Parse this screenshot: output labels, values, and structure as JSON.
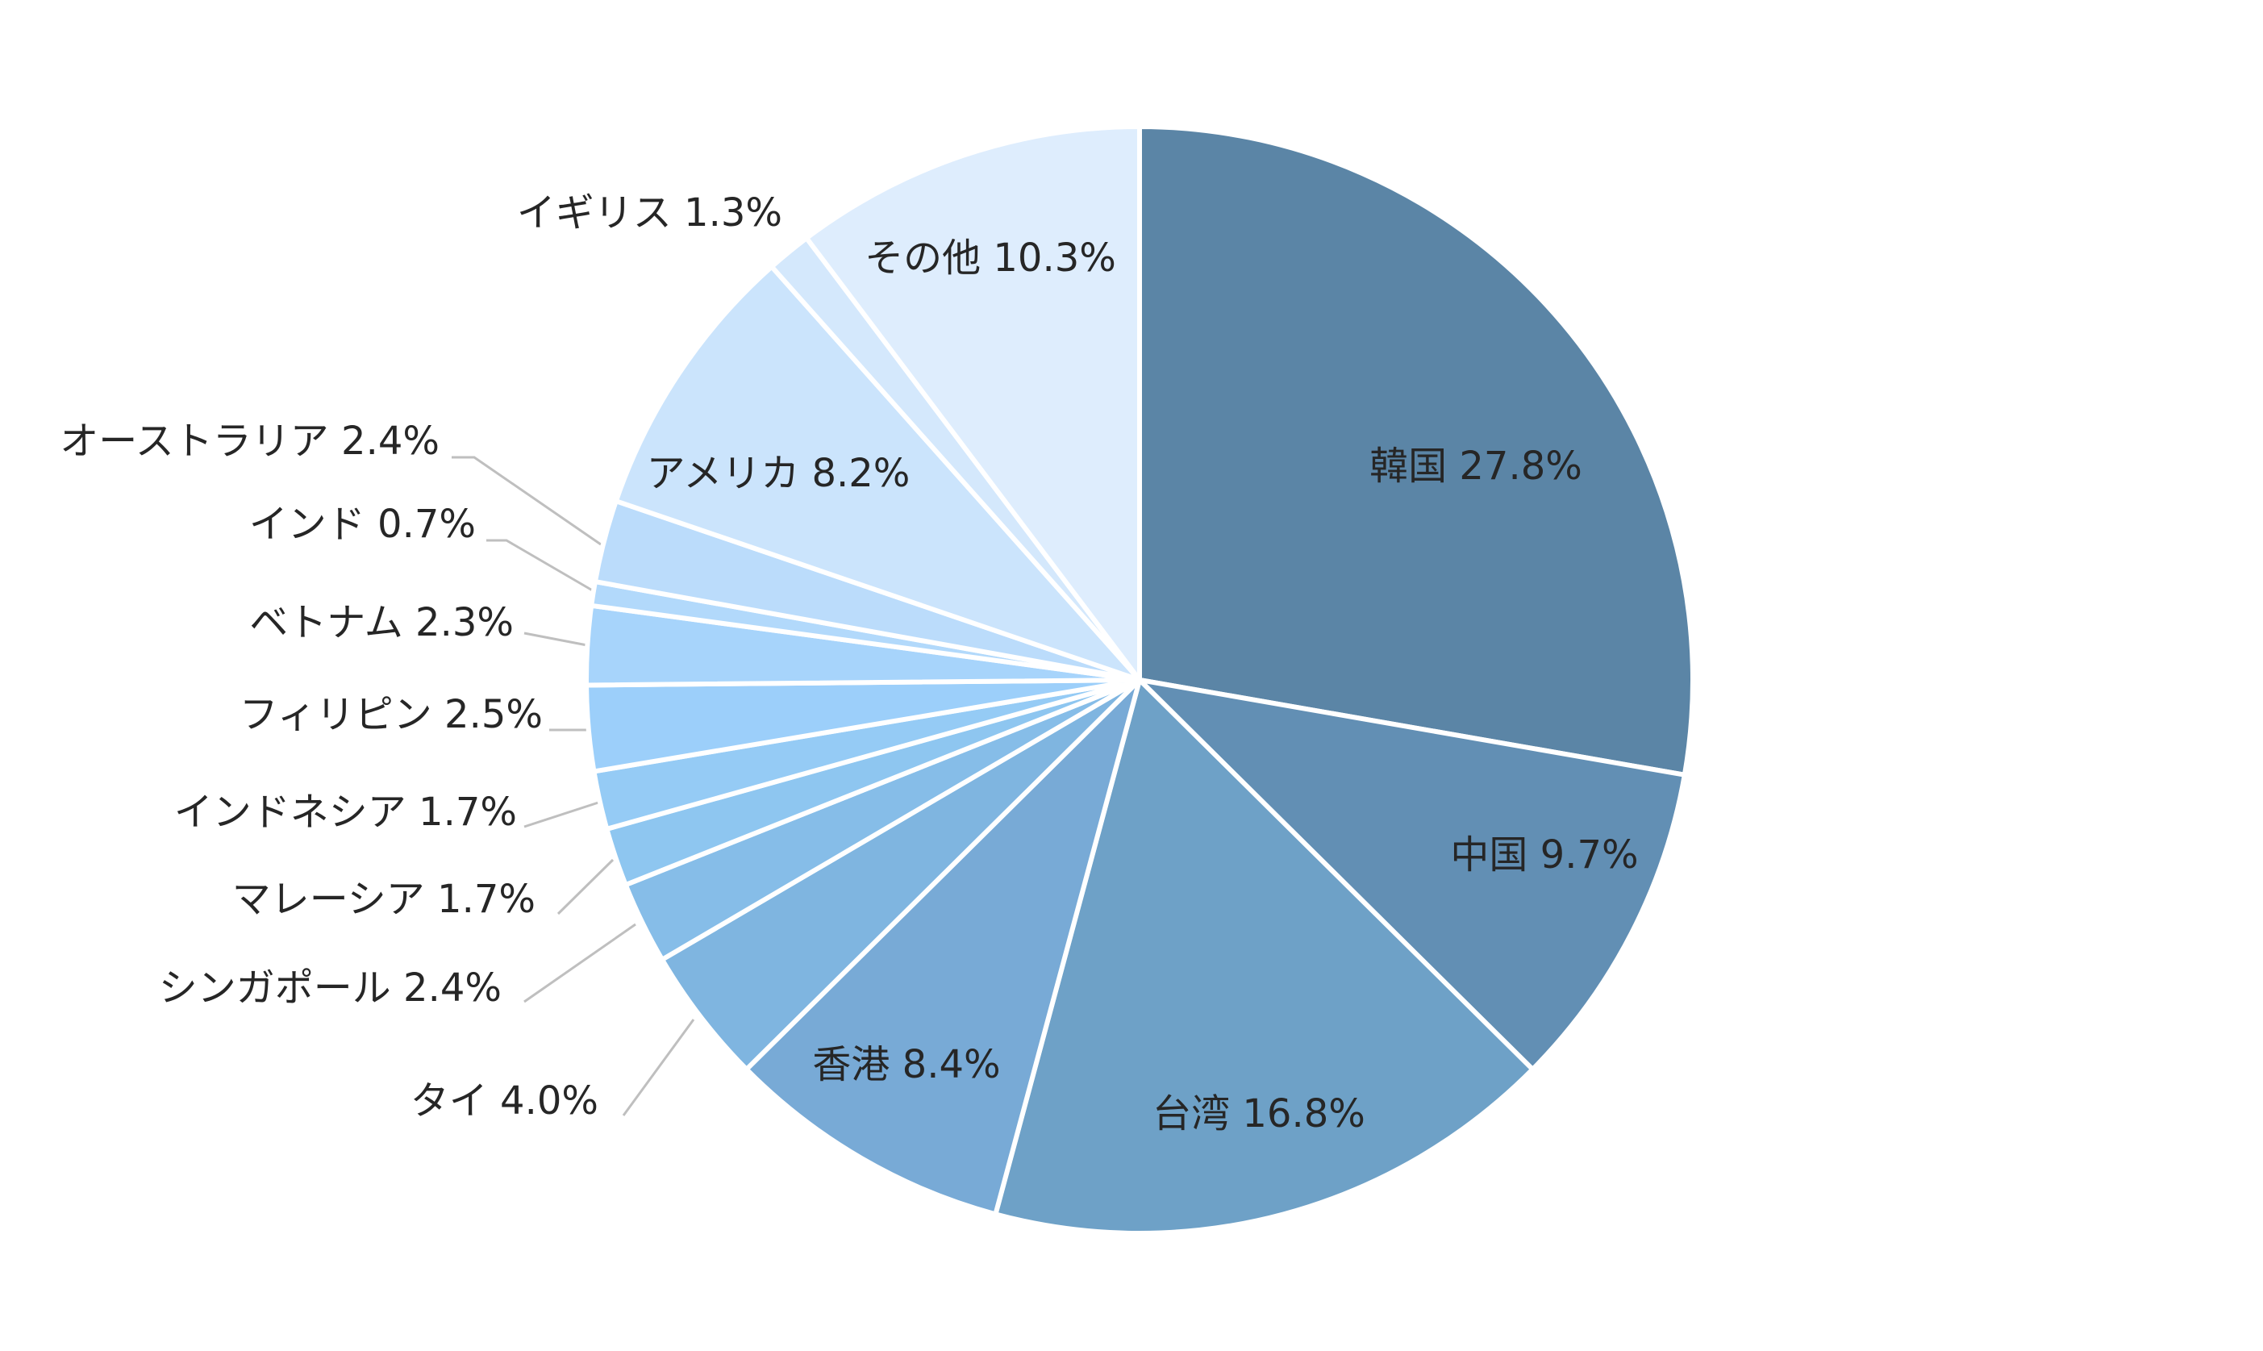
{
  "chart_data": {
    "type": "pie",
    "title": "",
    "start": "12 o'clock, clockwise",
    "slices": [
      {
        "name": "韓国",
        "value": 27.8,
        "label": "韓国 27.8%",
        "color": "#5b85a6"
      },
      {
        "name": "中国",
        "value": 9.7,
        "label": "中国 9.7%",
        "color": "#628fb4"
      },
      {
        "name": "台湾",
        "value": 16.8,
        "label": "台湾 16.8%",
        "color": "#6ea1c7"
      },
      {
        "name": "香港",
        "value": 8.4,
        "label": "香港 8.4%",
        "color": "#78aad6"
      },
      {
        "name": "タイ",
        "value": 4.0,
        "label": "タイ 4.0%",
        "color": "#7fb5e0"
      },
      {
        "name": "シンガポール",
        "value": 2.4,
        "label": "シンガポール 2.4%",
        "color": "#86bde8"
      },
      {
        "name": "マレーシア",
        "value": 1.7,
        "label": "マレーシア 1.7%",
        "color": "#8ec6f0"
      },
      {
        "name": "インドネシア",
        "value": 1.7,
        "label": "インドネシア 1.7%",
        "color": "#95cbf5"
      },
      {
        "name": "フィリピン",
        "value": 2.5,
        "label": "フィリピン 2.5%",
        "color": "#9ccffa"
      },
      {
        "name": "ベトナム",
        "value": 2.3,
        "label": "ベトナム 2.3%",
        "color": "#a7d4fb"
      },
      {
        "name": "インド",
        "value": 0.7,
        "label": "インド 0.7%",
        "color": "#b2d9fb"
      },
      {
        "name": "オーストラリア",
        "value": 2.4,
        "label": "オーストラリア 2.4%",
        "color": "#bbdcfb"
      },
      {
        "name": "アメリカ",
        "value": 8.2,
        "label": "アメリカ 8.2%",
        "color": "#cbe4fc"
      },
      {
        "name": "イギリス",
        "value": 1.3,
        "label": "イギリス 1.3%",
        "color": "#d4e8fc"
      },
      {
        "name": "その他",
        "value": 10.3,
        "label": "その他 10.3%",
        "color": "#deedfd"
      }
    ]
  }
}
